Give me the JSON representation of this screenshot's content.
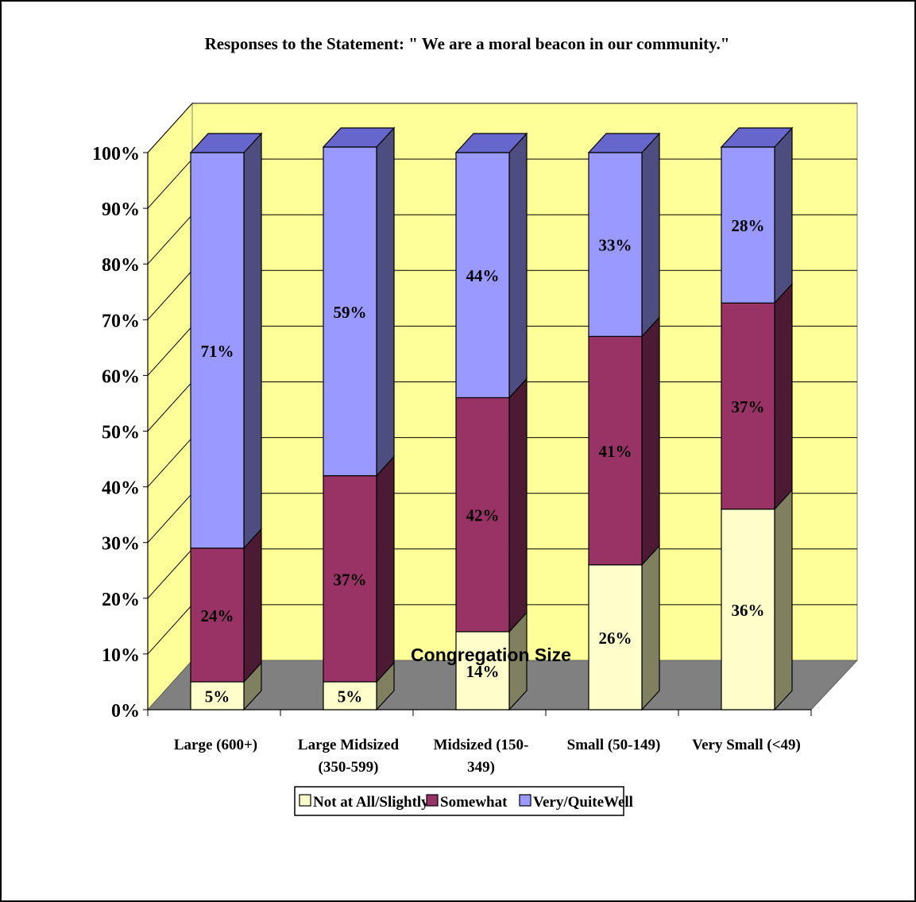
{
  "chart_data": {
    "type": "bar",
    "stacked": true,
    "title": "Responses to the Statement: \" We are a moral beacon in our community.\"",
    "xlabel": "Congregation Size",
    "ylabel": "",
    "ylim": [
      0,
      100
    ],
    "y_ticks": [
      "0%",
      "10%",
      "20%",
      "30%",
      "40%",
      "50%",
      "60%",
      "70%",
      "80%",
      "90%",
      "100%"
    ],
    "categories": [
      [
        "Large (600+)"
      ],
      [
        "Large Midsized",
        "(350-599)"
      ],
      [
        "Midsized (150-",
        "349)"
      ],
      [
        "Small (50-149)"
      ],
      [
        "Very Small (<49)"
      ]
    ],
    "series": [
      {
        "name": "Not at All/Slightly",
        "color": "#FFFFCC",
        "side_color": "#808060",
        "top_color": "#D8D8A8",
        "values": [
          5,
          5,
          14,
          26,
          36
        ],
        "labels": [
          "5%",
          "5%",
          "14%",
          "26%",
          "36%"
        ]
      },
      {
        "name": "Somewhat",
        "color": "#993366",
        "side_color": "#4D1A33",
        "top_color": "#7A2952",
        "values": [
          24,
          37,
          42,
          41,
          37
        ],
        "labels": [
          "24%",
          "37%",
          "42%",
          "41%",
          "37%"
        ]
      },
      {
        "name": "Very/QuiteWell",
        "color": "#9999FF",
        "side_color": "#4D4D80",
        "top_color": "#6666CC",
        "values": [
          71,
          59,
          44,
          33,
          28
        ],
        "labels": [
          "71%",
          "59%",
          "44%",
          "33%",
          "28%"
        ]
      }
    ],
    "grid": true,
    "wall_color": "#FFFF99",
    "floor_color": "#808080",
    "legend_position": "bottom"
  }
}
